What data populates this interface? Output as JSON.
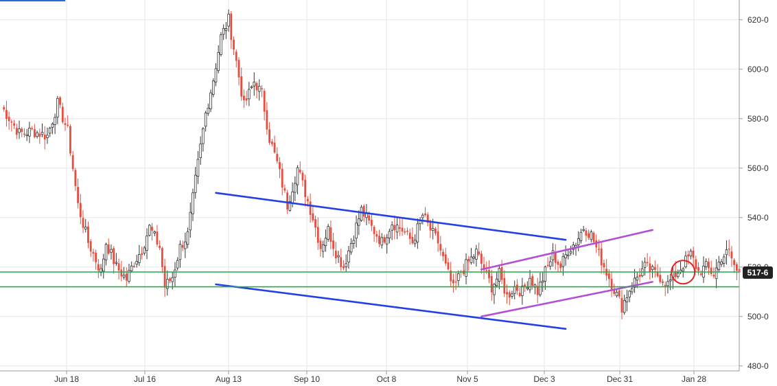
{
  "chart_data": {
    "type": "candlestick",
    "x": [
      "Jun 18",
      "Jul 16",
      "Aug 13",
      "Sep 10",
      "Oct 8",
      "Nov 5",
      "Dec 3",
      "Dec 31",
      "Jan 28"
    ],
    "y_ticks": [
      "480-0",
      "500-0",
      "520-0",
      "540-0",
      "560-0",
      "580-0",
      "600-0",
      "620-0"
    ],
    "y_tick_values": [
      480,
      500,
      520,
      540,
      560,
      580,
      600,
      620
    ],
    "ylim": [
      478,
      628
    ],
    "grid": true,
    "last_price": 517.75,
    "last_price_label": "517-6",
    "anchors": [
      {
        "t": 0,
        "v": 585
      },
      {
        "t": 7,
        "v": 574
      },
      {
        "t": 12,
        "v": 575
      },
      {
        "t": 18,
        "v": 573
      },
      {
        "t": 22,
        "v": 586
      },
      {
        "t": 26,
        "v": 575
      },
      {
        "t": 30,
        "v": 545
      },
      {
        "t": 34,
        "v": 530
      },
      {
        "t": 39,
        "v": 518
      },
      {
        "t": 41,
        "v": 530
      },
      {
        "t": 45,
        "v": 520
      },
      {
        "t": 49,
        "v": 515
      },
      {
        "t": 52,
        "v": 522
      },
      {
        "t": 55,
        "v": 527
      },
      {
        "t": 58,
        "v": 536
      },
      {
        "t": 62,
        "v": 528
      },
      {
        "t": 64,
        "v": 512
      },
      {
        "t": 67,
        "v": 516
      },
      {
        "t": 70,
        "v": 528
      },
      {
        "t": 73,
        "v": 533
      },
      {
        "t": 76,
        "v": 555
      },
      {
        "t": 80,
        "v": 582
      },
      {
        "t": 83,
        "v": 596
      },
      {
        "t": 86,
        "v": 613
      },
      {
        "t": 89,
        "v": 620
      },
      {
        "t": 92,
        "v": 603
      },
      {
        "t": 95,
        "v": 585
      },
      {
        "t": 99,
        "v": 595
      },
      {
        "t": 102,
        "v": 590
      },
      {
        "t": 105,
        "v": 572
      },
      {
        "t": 108,
        "v": 562
      },
      {
        "t": 112,
        "v": 545
      },
      {
        "t": 116,
        "v": 560
      },
      {
        "t": 119,
        "v": 550
      },
      {
        "t": 122,
        "v": 540
      },
      {
        "t": 125,
        "v": 528
      },
      {
        "t": 128,
        "v": 535
      },
      {
        "t": 131,
        "v": 526
      },
      {
        "t": 134,
        "v": 520
      },
      {
        "t": 137,
        "v": 530
      },
      {
        "t": 141,
        "v": 543
      },
      {
        "t": 145,
        "v": 536
      },
      {
        "t": 149,
        "v": 530
      },
      {
        "t": 153,
        "v": 538
      },
      {
        "t": 157,
        "v": 535
      },
      {
        "t": 161,
        "v": 530
      },
      {
        "t": 165,
        "v": 541
      },
      {
        "t": 168,
        "v": 535
      },
      {
        "t": 171,
        "v": 530
      },
      {
        "t": 174,
        "v": 520
      },
      {
        "t": 177,
        "v": 511
      },
      {
        "t": 180,
        "v": 518
      },
      {
        "t": 183,
        "v": 522
      },
      {
        "t": 186,
        "v": 526
      },
      {
        "t": 189,
        "v": 519
      },
      {
        "t": 192,
        "v": 512
      },
      {
        "t": 195,
        "v": 517
      },
      {
        "t": 198,
        "v": 508
      },
      {
        "t": 201,
        "v": 512
      },
      {
        "t": 204,
        "v": 510
      },
      {
        "t": 207,
        "v": 516
      },
      {
        "t": 210,
        "v": 510
      },
      {
        "t": 213,
        "v": 518
      },
      {
        "t": 216,
        "v": 525
      },
      {
        "t": 219,
        "v": 520
      },
      {
        "t": 222,
        "v": 527
      },
      {
        "t": 225,
        "v": 530
      },
      {
        "t": 228,
        "v": 536
      },
      {
        "t": 231,
        "v": 533
      },
      {
        "t": 234,
        "v": 525
      },
      {
        "t": 237,
        "v": 518
      },
      {
        "t": 240,
        "v": 511
      },
      {
        "t": 243,
        "v": 504
      },
      {
        "t": 246,
        "v": 511
      },
      {
        "t": 249,
        "v": 516
      },
      {
        "t": 252,
        "v": 520
      },
      {
        "t": 255,
        "v": 518
      },
      {
        "t": 258,
        "v": 516
      },
      {
        "t": 261,
        "v": 513
      },
      {
        "t": 264,
        "v": 517
      },
      {
        "t": 267,
        "v": 521
      },
      {
        "t": 270,
        "v": 525
      },
      {
        "t": 273,
        "v": 518
      },
      {
        "t": 276,
        "v": 520
      },
      {
        "t": 279,
        "v": 517
      },
      {
        "t": 282,
        "v": 524
      },
      {
        "t": 285,
        "v": 526
      },
      {
        "t": 288,
        "v": 518
      },
      {
        "t": 289,
        "v": 517.75
      }
    ]
  },
  "colors": {
    "background": "#ffffff",
    "grid": "#e6e6e6",
    "axis": "#999999",
    "tick_text": "#333333",
    "bear": "#e84c3d",
    "bull_fill": "#ffffff",
    "bull_stroke": "#333333",
    "channel": "#2140e6",
    "rising_wedge": "#b34fd4",
    "support": "#22aa44",
    "circle": "#e02020",
    "last_badge": "#222222",
    "top_bar": "#2a6ad6"
  },
  "annotations": [
    {
      "name": "channel-upper",
      "color": "#2140e6",
      "t1": 84,
      "v1": 550,
      "t2": 221,
      "v2": 531
    },
    {
      "name": "channel-lower",
      "color": "#2140e6",
      "t1": 84,
      "v1": 513,
      "t2": 221,
      "v2": 495
    },
    {
      "name": "wedge-upper",
      "color": "#b34fd4",
      "t1": 188,
      "v1": 519,
      "t2": 255,
      "v2": 535
    },
    {
      "name": "wedge-lower",
      "color": "#b34fd4",
      "t1": 188,
      "v1": 500,
      "t2": 255,
      "v2": 514
    },
    {
      "name": "support-line-upper",
      "color": "#22aa44",
      "value": 518
    },
    {
      "name": "support-line-lower",
      "color": "#22aa44",
      "value": 512
    }
  ],
  "highlight": {
    "name": "last-candle-circle",
    "t": 260,
    "v": 516
  }
}
